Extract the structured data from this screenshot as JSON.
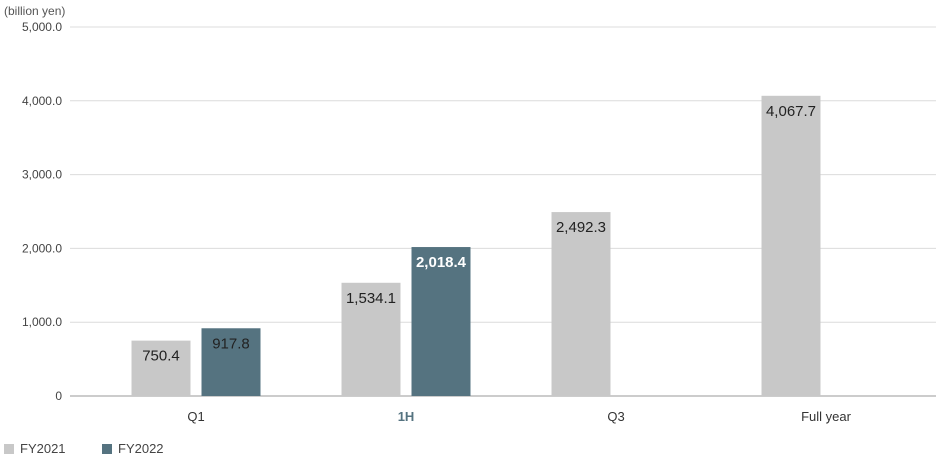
{
  "chart_data": {
    "type": "bar",
    "unit_label": "(billion yen)",
    "categories": [
      "Q1",
      "1H",
      "Q3",
      "Full year"
    ],
    "highlight_category": "1H",
    "series": [
      {
        "name": "FY2021",
        "color": "#c8c8c8",
        "values": [
          750.4,
          1534.1,
          2492.3,
          4067.7
        ],
        "labels": [
          "750.4",
          "1,534.1",
          "2,492.3",
          "4,067.7"
        ]
      },
      {
        "name": "FY2022",
        "color": "#557380",
        "values": [
          917.8,
          2018.4,
          null,
          null
        ],
        "labels": [
          "917.8",
          "2,018.4",
          "",
          ""
        ]
      }
    ],
    "y_ticks": [
      "0",
      "1,000.0",
      "2,000.0",
      "3,000.0",
      "4,000.0",
      "5,000.0"
    ],
    "y_tick_values": [
      0,
      1000,
      2000,
      3000,
      4000,
      5000
    ],
    "ylim": [
      0,
      5000
    ],
    "grid": true,
    "legend_position": "bottom-left",
    "bold_labels": [
      "2,018.4"
    ]
  }
}
